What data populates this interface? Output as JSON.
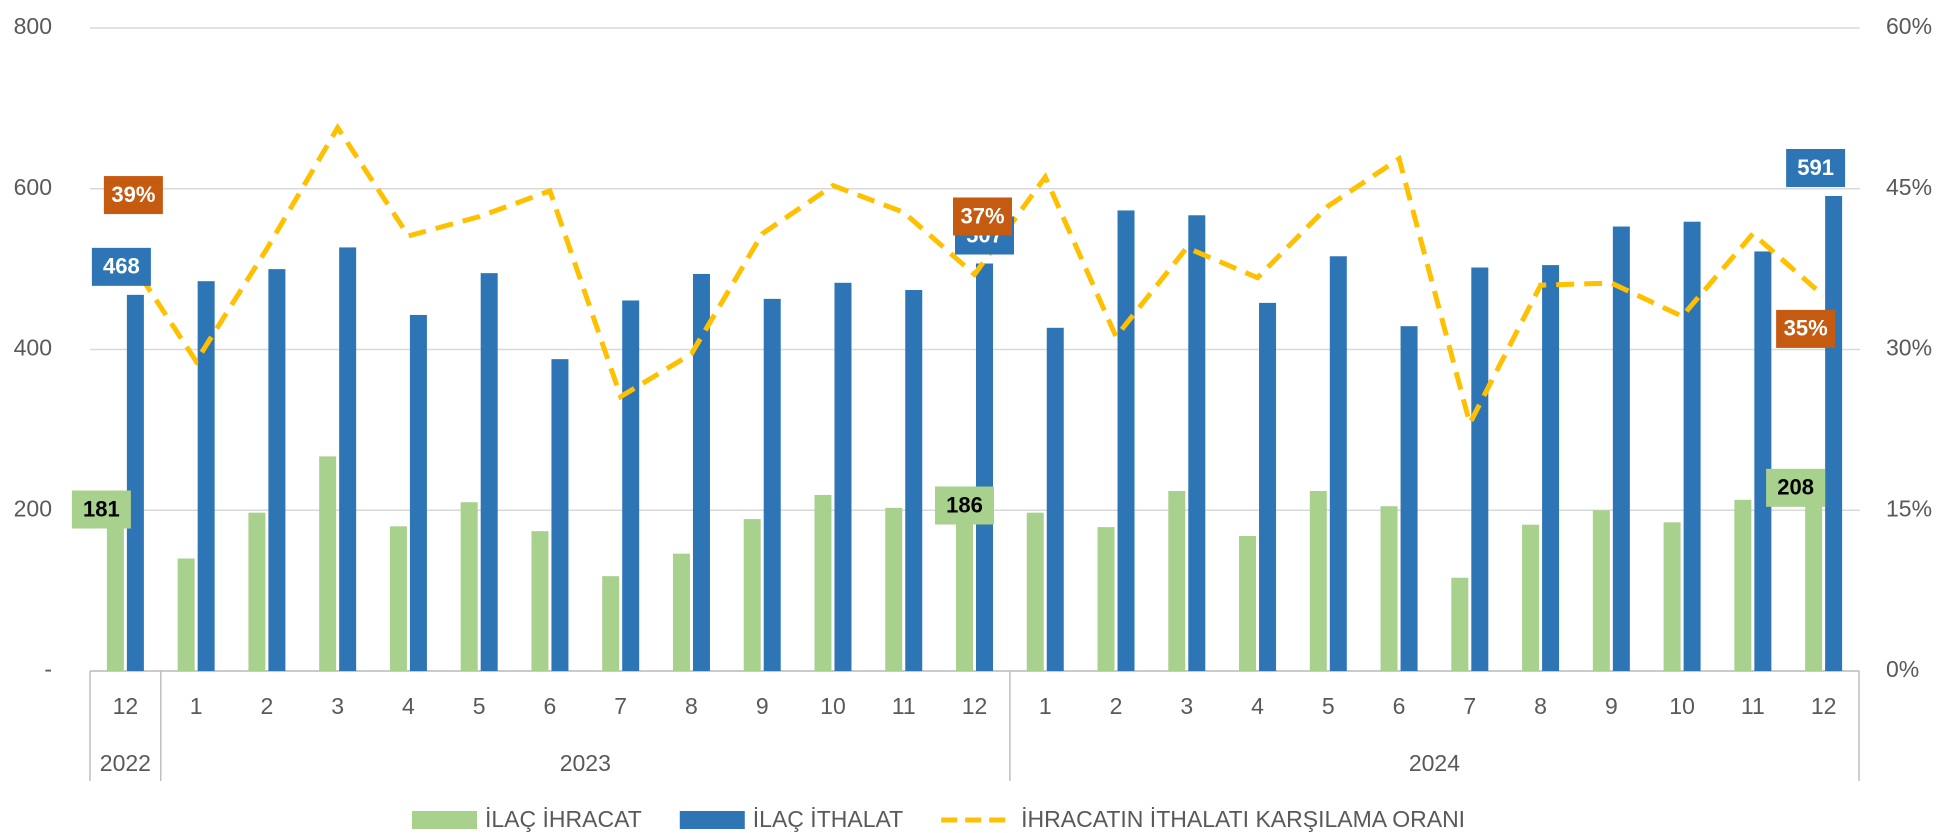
{
  "chart_data": {
    "type": "bar_line",
    "categories": [
      "12",
      "1",
      "2",
      "3",
      "4",
      "5",
      "6",
      "7",
      "8",
      "9",
      "10",
      "11",
      "12",
      "1",
      "2",
      "3",
      "4",
      "5",
      "6",
      "7",
      "8",
      "9",
      "10",
      "11",
      "12"
    ],
    "year_groups": [
      {
        "label": "2022",
        "count": 1
      },
      {
        "label": "2023",
        "count": 12
      },
      {
        "label": "2024",
        "count": 12
      }
    ],
    "series": [
      {
        "name": "İLAÇ İHRACAT",
        "type": "bar",
        "color": "#a9d18e",
        "values": [
          181,
          140,
          197,
          267,
          180,
          210,
          174,
          118,
          146,
          189,
          219,
          203,
          186,
          197,
          179,
          224,
          168,
          224,
          205,
          116,
          182,
          200,
          185,
          213,
          208
        ],
        "value_labels": [
          "181",
          null,
          null,
          null,
          null,
          null,
          null,
          null,
          null,
          null,
          null,
          null,
          "186",
          null,
          null,
          null,
          null,
          null,
          null,
          null,
          null,
          null,
          null,
          null,
          "208"
        ]
      },
      {
        "name": "İLAÇ İTHALAT",
        "type": "bar",
        "color": "#2e75b6",
        "values": [
          468,
          485,
          500,
          527,
          443,
          495,
          388,
          461,
          494,
          463,
          483,
          474,
          507,
          427,
          573,
          567,
          458,
          516,
          429,
          502,
          505,
          553,
          559,
          522,
          591
        ],
        "value_labels": [
          "468",
          null,
          null,
          null,
          null,
          null,
          null,
          null,
          null,
          null,
          null,
          null,
          "507",
          null,
          null,
          null,
          null,
          null,
          null,
          null,
          null,
          null,
          null,
          null,
          "591"
        ]
      },
      {
        "name": "İHRACATIN İTHALATI KARŞILAMA ORANI",
        "type": "line",
        "axis": "y2",
        "color": "#ffc000",
        "dashed": true,
        "values": [
          39,
          28.9,
          39.4,
          50.7,
          40.6,
          42.4,
          44.8,
          25.6,
          29.6,
          40.8,
          45.3,
          42.8,
          37,
          46.1,
          31.2,
          39.5,
          36.7,
          43.4,
          47.8,
          23.1,
          36,
          36.2,
          33.1,
          40.8,
          35
        ],
        "value_labels": [
          "39%",
          null,
          null,
          null,
          null,
          null,
          null,
          null,
          null,
          null,
          null,
          null,
          "37%",
          null,
          null,
          null,
          null,
          null,
          null,
          null,
          null,
          null,
          null,
          null,
          "35%"
        ],
        "label_color": "#c55a11"
      }
    ],
    "ylim": [
      0,
      800
    ],
    "yticks": [
      {
        "value": 0,
        "label": "-"
      },
      200,
      400,
      600,
      800
    ],
    "y2lim": [
      0,
      60
    ],
    "y2ticks": [
      {
        "value": 0,
        "label": "0%"
      },
      {
        "value": 15,
        "label": "15%"
      },
      {
        "value": 30,
        "label": "30%"
      },
      {
        "value": 45,
        "label": "45%"
      },
      {
        "value": 60,
        "label": "60%"
      }
    ],
    "grid": true,
    "legend": "bottom"
  }
}
